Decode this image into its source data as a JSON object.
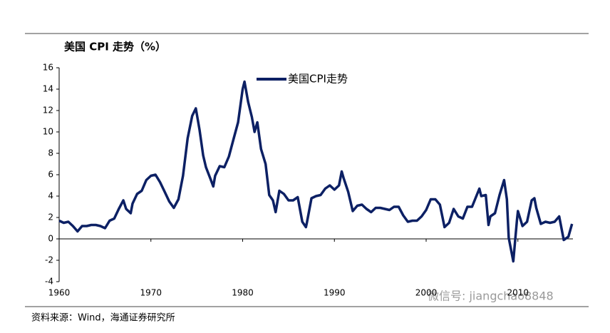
{
  "chart_data": {
    "type": "line",
    "title": "美国 CPI 走势（%）",
    "source": "资料来源：Wind，海通证券研究所",
    "watermark": "微信号: jiangchao8848",
    "xlim": [
      1960,
      2016
    ],
    "xticks": [
      1960,
      1970,
      1980,
      1990,
      2000,
      2010
    ],
    "ylim": [
      -4,
      16
    ],
    "yticks": [
      -4,
      -2,
      0,
      2,
      4,
      6,
      8,
      10,
      12,
      14,
      16
    ],
    "grid": false,
    "legend": "top",
    "series": [
      {
        "name": "美国CPI走势",
        "color": "#0c2064",
        "x": [
          1960,
          1960.5,
          1961,
          1961.5,
          1962,
          1962.5,
          1963,
          1963.5,
          1964,
          1964.5,
          1965,
          1965.5,
          1966,
          1966.5,
          1967,
          1967.3,
          1967.8,
          1968,
          1968.5,
          1969,
          1969.5,
          1970,
          1970.5,
          1971,
          1971.5,
          1972,
          1972.5,
          1973,
          1973.5,
          1974,
          1974.5,
          1974.9,
          1975.3,
          1975.7,
          1976,
          1976.5,
          1976.8,
          1977,
          1977.5,
          1978,
          1978.5,
          1979,
          1979.5,
          1980,
          1980.2,
          1980.6,
          1981,
          1981.3,
          1981.6,
          1982,
          1982.5,
          1982.9,
          1983.3,
          1983.6,
          1984,
          1984.5,
          1985,
          1985.5,
          1986,
          1986.5,
          1986.9,
          1987,
          1987.5,
          1988,
          1988.5,
          1989,
          1989.5,
          1990,
          1990.5,
          1990.8,
          1991,
          1991.5,
          1992,
          1992.5,
          1993,
          1993.5,
          1994,
          1994.5,
          1995,
          1995.5,
          1996,
          1996.5,
          1997,
          1997.5,
          1998,
          1998.5,
          1999,
          1999.5,
          2000,
          2000.5,
          2001,
          2001.5,
          2002,
          2002.5,
          2003,
          2003.5,
          2004,
          2004.5,
          2005,
          2005.8,
          2006,
          2006.5,
          2006.8,
          2007,
          2007.5,
          2008,
          2008.5,
          2008.8,
          2009,
          2009.5,
          2009.9,
          2010,
          2010.5,
          2011,
          2011.5,
          2011.8,
          2012,
          2012.5,
          2013,
          2013.5,
          2014,
          2014.5,
          2015,
          2015.5,
          2015.9
        ],
        "values": [
          1.7,
          1.5,
          1.6,
          1.2,
          0.7,
          1.2,
          1.2,
          1.3,
          1.3,
          1.2,
          1.0,
          1.7,
          1.9,
          2.8,
          3.6,
          2.8,
          2.4,
          3.3,
          4.2,
          4.5,
          5.5,
          5.9,
          6.0,
          5.3,
          4.4,
          3.5,
          2.9,
          3.7,
          5.9,
          9.4,
          11.5,
          12.2,
          10.2,
          7.8,
          6.7,
          5.6,
          4.9,
          5.9,
          6.8,
          6.7,
          7.7,
          9.3,
          10.9,
          14.0,
          14.7,
          12.8,
          11.4,
          10.0,
          10.9,
          8.4,
          7.0,
          4.1,
          3.6,
          2.5,
          4.5,
          4.2,
          3.6,
          3.6,
          3.9,
          1.6,
          1.1,
          1.5,
          3.8,
          4.0,
          4.1,
          4.7,
          5.0,
          4.6,
          5.0,
          6.3,
          5.7,
          4.4,
          2.6,
          3.1,
          3.2,
          2.8,
          2.5,
          2.9,
          2.9,
          2.8,
          2.7,
          3.0,
          3.0,
          2.2,
          1.6,
          1.7,
          1.7,
          2.1,
          2.7,
          3.7,
          3.7,
          3.2,
          1.1,
          1.5,
          2.8,
          2.1,
          1.9,
          3.0,
          3.0,
          4.7,
          4.0,
          4.1,
          1.3,
          2.1,
          2.4,
          4.1,
          5.5,
          3.7,
          0.1,
          -2.1,
          1.8,
          2.6,
          1.2,
          1.6,
          3.6,
          3.8,
          2.9,
          1.4,
          1.6,
          1.5,
          1.6,
          2.1,
          -0.1,
          0.2,
          1.4
        ]
      }
    ]
  }
}
